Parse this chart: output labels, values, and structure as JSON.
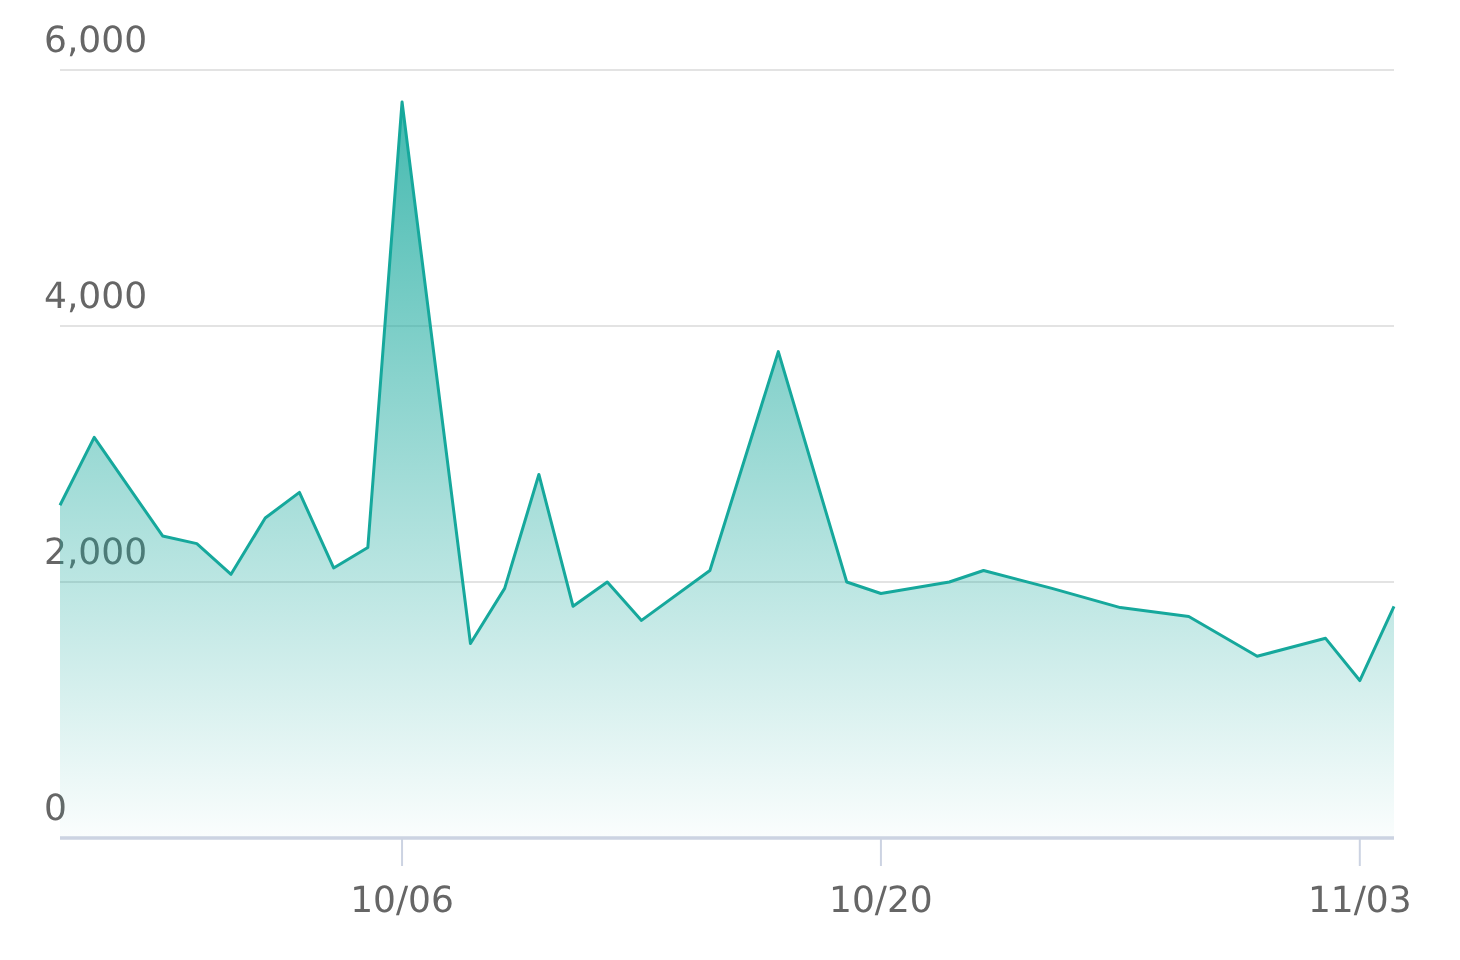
{
  "chart_data": {
    "type": "area",
    "x": [
      "--09-26",
      "--09-27",
      "--09-29",
      "--09-30",
      "--10-01",
      "--10-02",
      "--10-03",
      "--10-04",
      "--10-05",
      "--10-06",
      "--10-08",
      "--10-09",
      "--10-10",
      "--10-11",
      "--10-12",
      "--10-13",
      "--10-15",
      "--10-17",
      "--10-19",
      "--10-20",
      "--10-22",
      "--10-23",
      "--10-25",
      "--10-27",
      "--10-29",
      "--10-31",
      "--11-02",
      "--11-03",
      "--11-04"
    ],
    "series": [
      {
        "color": "#16a89c",
        "values": [
          2600,
          3130,
          2360,
          2300,
          2060,
          2500,
          2700,
          2110,
          2270,
          5750,
          1520,
          1950,
          2840,
          1810,
          2000,
          1700,
          2090,
          3800,
          2000,
          1910,
          2000,
          2090,
          1950,
          1800,
          1730,
          1420,
          1560,
          1230,
          1810
        ]
      }
    ],
    "xlim": [
      "--09-26",
      "--11-04"
    ],
    "xticks": [
      {
        "value": "--10-06",
        "label": "10/06"
      },
      {
        "value": "--10-20",
        "label": "10/20"
      },
      {
        "value": "--11-03",
        "label": "11/03"
      }
    ],
    "ylim": [
      0,
      6000
    ],
    "yticks": [
      {
        "value": 0,
        "label": "0"
      },
      {
        "value": 2000,
        "label": "2,000"
      },
      {
        "value": 4000,
        "label": "4,000"
      },
      {
        "value": 6000,
        "label": "6,000"
      }
    ],
    "grid": "y",
    "marker": "none",
    "line_style": "solid"
  }
}
